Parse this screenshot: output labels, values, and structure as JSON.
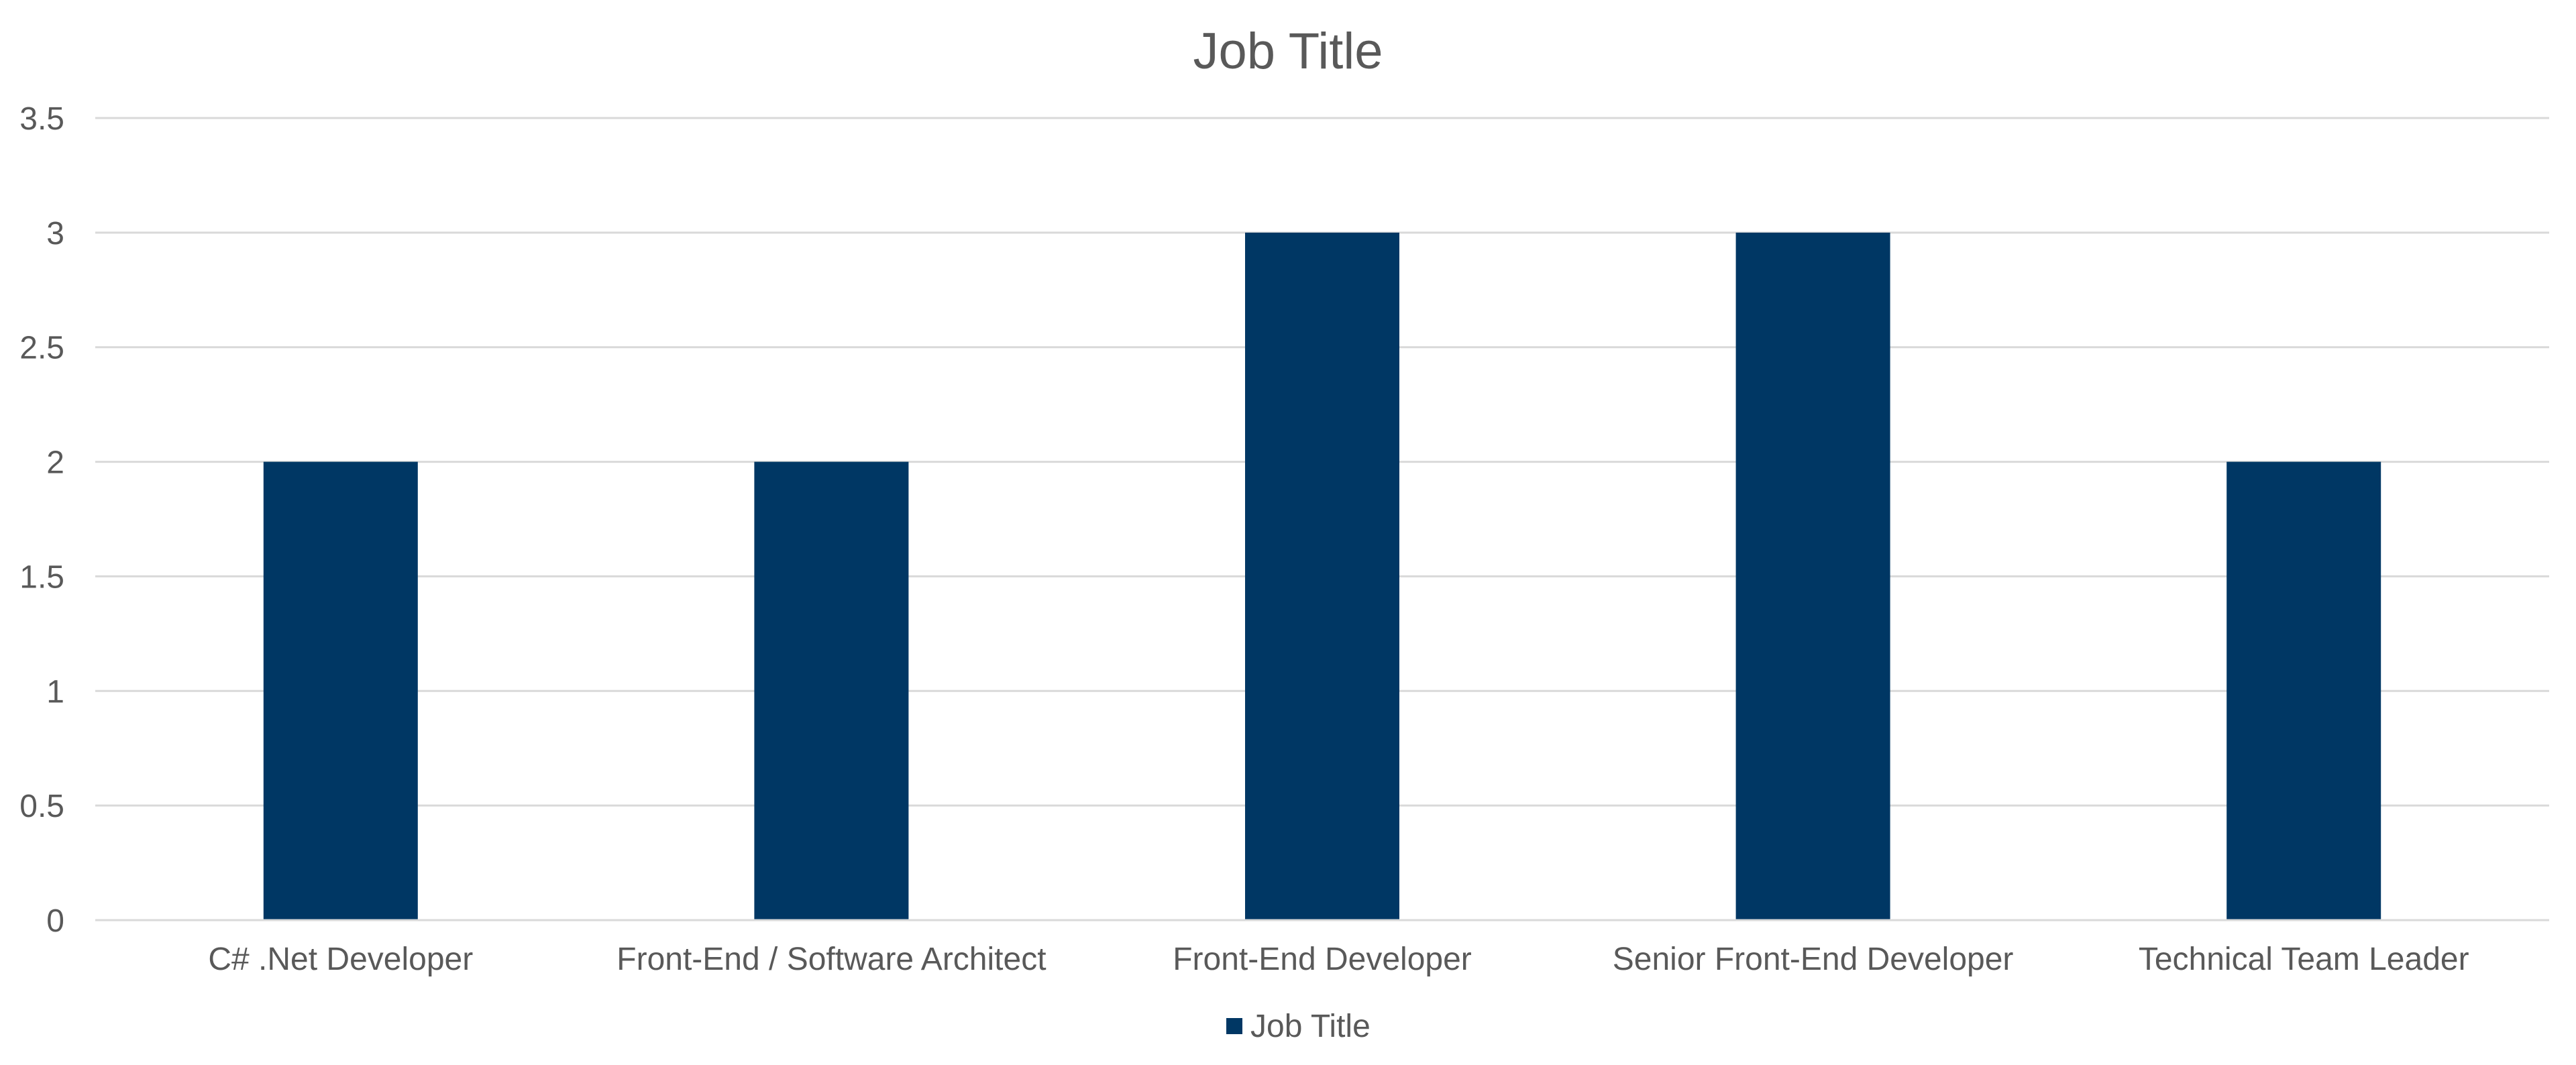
{
  "chart_data": {
    "type": "bar",
    "title": "Job Title",
    "xlabel": "",
    "ylabel": "",
    "categories": [
      "C# .Net Developer",
      "Front-End / Software Architect",
      "Front-End Developer",
      "Senior Front-End Developer",
      "Technical Team Leader"
    ],
    "series": [
      {
        "name": "Job Title",
        "values": [
          2,
          2,
          3,
          3,
          2
        ],
        "color": "#003764"
      }
    ],
    "ylim": [
      0,
      3.5
    ],
    "yticks": [
      "0",
      "0.5",
      "1",
      "1.5",
      "2",
      "2.5",
      "3",
      "3.5"
    ],
    "grid": true,
    "legend_position": "bottom"
  }
}
